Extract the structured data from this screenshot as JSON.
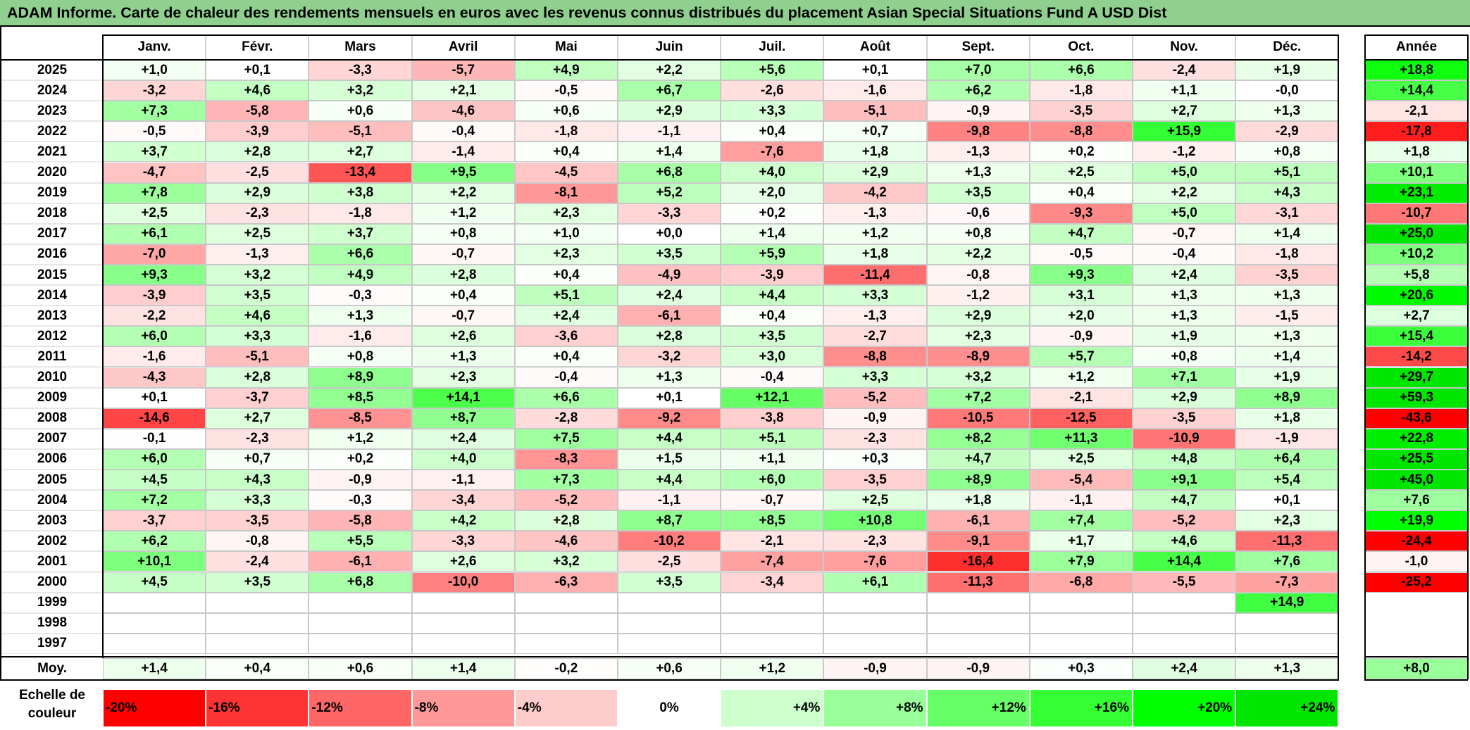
{
  "title": "ADAM Informe. Carte de chaleur des rendements mensuels en euros avec les revenus connus distribués du placement Asian Special Situations Fund A USD Dist",
  "chart_data": {
    "type": "heatmap",
    "title": "ADAM Informe. Carte de chaleur des rendements mensuels en euros avec les revenus connus distribués du placement Asian Special Situations Fund A USD Dist",
    "columns": [
      "Janv.",
      "Févr.",
      "Mars",
      "Avril",
      "Mai",
      "Juin",
      "Juil.",
      "Août",
      "Sept.",
      "Oct.",
      "Nov.",
      "Déc."
    ],
    "annual_header": "Année",
    "average_label": "Moy.",
    "rows": [
      {
        "year": "2025",
        "values": [
          "+1,0",
          "+0,1",
          "-3,3",
          "-5,7",
          "+4,9",
          "+2,2",
          "+5,6",
          "+0,1",
          "+7,0",
          "+6,6",
          "-2,4",
          "+1,9"
        ],
        "annual": "+18,8"
      },
      {
        "year": "2024",
        "values": [
          "-3,2",
          "+4,6",
          "+3,2",
          "+2,1",
          "-0,5",
          "+6,7",
          "-2,6",
          "-1,6",
          "+6,2",
          "-1,8",
          "+1,1",
          "-0,0"
        ],
        "annual": "+14,4"
      },
      {
        "year": "2023",
        "values": [
          "+7,3",
          "-5,8",
          "+0,6",
          "-4,6",
          "+0,6",
          "+2,9",
          "+3,3",
          "-5,1",
          "-0,9",
          "-3,5",
          "+2,7",
          "+1,3"
        ],
        "annual": "-2,1"
      },
      {
        "year": "2022",
        "values": [
          "-0,5",
          "-3,9",
          "-5,1",
          "-0,4",
          "-1,8",
          "-1,1",
          "+0,4",
          "+0,7",
          "-9,8",
          "-8,8",
          "+15,9",
          "-2,9"
        ],
        "annual": "-17,8"
      },
      {
        "year": "2021",
        "values": [
          "+3,7",
          "+2,8",
          "+2,7",
          "-1,4",
          "+0,4",
          "+1,4",
          "-7,6",
          "+1,8",
          "-1,3",
          "+0,2",
          "-1,2",
          "+0,8"
        ],
        "annual": "+1,8"
      },
      {
        "year": "2020",
        "values": [
          "-4,7",
          "-2,5",
          "-13,4",
          "+9,5",
          "-4,5",
          "+6,8",
          "+4,0",
          "+2,9",
          "+1,3",
          "+2,5",
          "+5,0",
          "+5,1"
        ],
        "annual": "+10,1"
      },
      {
        "year": "2019",
        "values": [
          "+7,8",
          "+2,9",
          "+3,8",
          "+2,2",
          "-8,1",
          "+5,2",
          "+2,0",
          "-4,2",
          "+3,5",
          "+0,4",
          "+2,2",
          "+4,3"
        ],
        "annual": "+23,1"
      },
      {
        "year": "2018",
        "values": [
          "+2,5",
          "-2,3",
          "-1,8",
          "+1,2",
          "+2,3",
          "-3,3",
          "+0,2",
          "-1,3",
          "-0,6",
          "-9,3",
          "+5,0",
          "-3,1"
        ],
        "annual": "-10,7"
      },
      {
        "year": "2017",
        "values": [
          "+6,1",
          "+2,5",
          "+3,7",
          "+0,8",
          "+1,0",
          "+0,0",
          "+1,4",
          "+1,2",
          "+0,8",
          "+4,7",
          "-0,7",
          "+1,4"
        ],
        "annual": "+25,0"
      },
      {
        "year": "2016",
        "values": [
          "-7,0",
          "-1,3",
          "+6,6",
          "-0,7",
          "+2,3",
          "+3,5",
          "+5,9",
          "+1,8",
          "+2,2",
          "-0,5",
          "-0,4",
          "-1,8"
        ],
        "annual": "+10,2"
      },
      {
        "year": "2015",
        "values": [
          "+9,3",
          "+3,2",
          "+4,9",
          "+2,8",
          "+0,4",
          "-4,9",
          "-3,9",
          "-11,4",
          "-0,8",
          "+9,3",
          "+2,4",
          "-3,5"
        ],
        "annual": "+5,8"
      },
      {
        "year": "2014",
        "values": [
          "-3,9",
          "+3,5",
          "-0,3",
          "+0,4",
          "+5,1",
          "+2,4",
          "+4,4",
          "+3,3",
          "-1,2",
          "+3,1",
          "+1,3",
          "+1,3"
        ],
        "annual": "+20,6"
      },
      {
        "year": "2013",
        "values": [
          "-2,2",
          "+4,6",
          "+1,3",
          "-0,7",
          "+2,4",
          "-6,1",
          "+0,4",
          "-1,3",
          "+2,9",
          "+2,0",
          "+1,3",
          "-1,5"
        ],
        "annual": "+2,7"
      },
      {
        "year": "2012",
        "values": [
          "+6,0",
          "+3,3",
          "-1,6",
          "+2,6",
          "-3,6",
          "+2,8",
          "+3,5",
          "-2,7",
          "+2,3",
          "-0,9",
          "+1,9",
          "+1,3"
        ],
        "annual": "+15,4"
      },
      {
        "year": "2011",
        "values": [
          "-1,6",
          "-5,1",
          "+0,8",
          "+1,3",
          "+0,4",
          "-3,2",
          "+3,0",
          "-8,8",
          "-8,9",
          "+5,7",
          "+0,8",
          "+1,4"
        ],
        "annual": "-14,2"
      },
      {
        "year": "2010",
        "values": [
          "-4,3",
          "+2,8",
          "+8,9",
          "+2,3",
          "-0,4",
          "+1,3",
          "-0,4",
          "+3,3",
          "+3,2",
          "+1,2",
          "+7,1",
          "+1,9"
        ],
        "annual": "+29,7"
      },
      {
        "year": "2009",
        "values": [
          "+0,1",
          "-3,7",
          "+8,5",
          "+14,1",
          "+6,6",
          "+0,1",
          "+12,1",
          "-5,2",
          "+7,2",
          "-2,1",
          "+2,9",
          "+8,9"
        ],
        "annual": "+59,3"
      },
      {
        "year": "2008",
        "values": [
          "-14,6",
          "+2,7",
          "-8,5",
          "+8,7",
          "-2,8",
          "-9,2",
          "-3,8",
          "-0,9",
          "-10,5",
          "-12,5",
          "-3,5",
          "+1,8"
        ],
        "annual": "-43,6"
      },
      {
        "year": "2007",
        "values": [
          "-0,1",
          "-2,3",
          "+1,2",
          "+2,4",
          "+7,5",
          "+4,4",
          "+5,1",
          "-2,3",
          "+8,2",
          "+11,3",
          "-10,9",
          "-1,9"
        ],
        "annual": "+22,8"
      },
      {
        "year": "2006",
        "values": [
          "+6,0",
          "+0,7",
          "+0,2",
          "+4,0",
          "-8,3",
          "+1,5",
          "+1,1",
          "+0,3",
          "+4,7",
          "+2,5",
          "+4,8",
          "+6,4"
        ],
        "annual": "+25,5"
      },
      {
        "year": "2005",
        "values": [
          "+4,5",
          "+4,3",
          "-0,9",
          "-1,1",
          "+7,3",
          "+4,4",
          "+6,0",
          "-3,5",
          "+8,9",
          "-5,4",
          "+9,1",
          "+5,4"
        ],
        "annual": "+45,0"
      },
      {
        "year": "2004",
        "values": [
          "+7,2",
          "+3,3",
          "-0,3",
          "-3,4",
          "-5,2",
          "-1,1",
          "-0,7",
          "+2,5",
          "+1,8",
          "-1,1",
          "+4,7",
          "+0,1"
        ],
        "annual": "+7,6"
      },
      {
        "year": "2003",
        "values": [
          "-3,7",
          "-3,5",
          "-5,8",
          "+4,2",
          "+2,8",
          "+8,7",
          "+8,5",
          "+10,8",
          "-6,1",
          "+7,4",
          "-5,2",
          "+2,3"
        ],
        "annual": "+19,9"
      },
      {
        "year": "2002",
        "values": [
          "+6,2",
          "-0,8",
          "+5,5",
          "-3,3",
          "-4,6",
          "-10,2",
          "-2,1",
          "-2,3",
          "-9,1",
          "+1,7",
          "+4,6",
          "-11,3"
        ],
        "annual": "-24,4"
      },
      {
        "year": "2001",
        "values": [
          "+10,1",
          "-2,4",
          "-6,1",
          "+2,6",
          "+3,2",
          "-2,5",
          "-7,4",
          "-7,6",
          "-16,4",
          "+7,9",
          "+14,4",
          "+7,6"
        ],
        "annual": "-1,0"
      },
      {
        "year": "2000",
        "values": [
          "+4,5",
          "+3,5",
          "+6,8",
          "-10,0",
          "-6,3",
          "+3,5",
          "-3,4",
          "+6,1",
          "-11,3",
          "-6,8",
          "-5,5",
          "-7,3"
        ],
        "annual": "-25,2"
      },
      {
        "year": "1999",
        "values": [
          "",
          "",
          "",
          "",
          "",
          "",
          "",
          "",
          "",
          "",
          "",
          "+14,9"
        ],
        "annual": ""
      },
      {
        "year": "1998",
        "values": [
          "",
          "",
          "",
          "",
          "",
          "",
          "",
          "",
          "",
          "",
          "",
          ""
        ],
        "annual": ""
      },
      {
        "year": "1997",
        "values": [
          "",
          "",
          "",
          "",
          "",
          "",
          "",
          "",
          "",
          "",
          "",
          ""
        ],
        "annual": ""
      }
    ],
    "average": {
      "values": [
        "+1,4",
        "+0,4",
        "+0,6",
        "+1,4",
        "-0,2",
        "+0,6",
        "+1,2",
        "-0,9",
        "-0,9",
        "+0,3",
        "+2,4",
        "+1,3"
      ],
      "annual": "+8,0"
    },
    "color_scale": {
      "label_line1": "Echelle de",
      "label_line2": "couleur",
      "stops": [
        {
          "label": "-20%",
          "value": -20,
          "color": "#ff0000"
        },
        {
          "label": "-16%",
          "value": -16,
          "color": "#ff3333"
        },
        {
          "label": "-12%",
          "value": -12,
          "color": "#ff6666"
        },
        {
          "label": "-8%",
          "value": -8,
          "color": "#ff9999"
        },
        {
          "label": "-4%",
          "value": -4,
          "color": "#ffcccc"
        },
        {
          "label": "0%",
          "value": 0,
          "color": "#ffffff"
        },
        {
          "label": "+4%",
          "value": 4,
          "color": "#ccffcc"
        },
        {
          "label": "+8%",
          "value": 8,
          "color": "#99ff99"
        },
        {
          "label": "+12%",
          "value": 12,
          "color": "#66ff66"
        },
        {
          "label": "+16%",
          "value": 16,
          "color": "#33ff33"
        },
        {
          "label": "+20%",
          "value": 20,
          "color": "#00ff00"
        },
        {
          "label": "+24%",
          "value": 24,
          "color": "#00e600"
        }
      ]
    }
  }
}
